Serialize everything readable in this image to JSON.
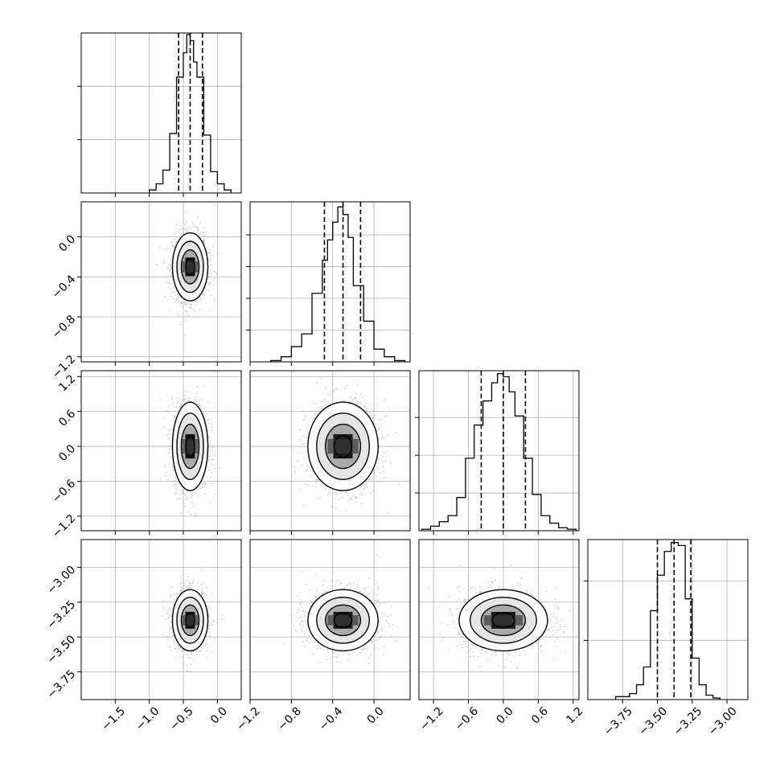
{
  "chart_data": {
    "type": "corner",
    "parameters": [
      {
        "range": [
          -2.0,
          0.35
        ],
        "ticks": [
          -1.5,
          -1.0,
          -0.5,
          0.0
        ],
        "tick_labels": [
          "−1.5",
          "−1.0",
          "−0.5",
          "0.0"
        ],
        "quantiles": [
          -0.57,
          -0.4,
          -0.22
        ],
        "hist_max": 105,
        "hist_ticks": [
          35,
          70
        ],
        "histogram": [
          {
            "x0": -1.0,
            "x1": -0.9,
            "count": 2
          },
          {
            "x0": -0.9,
            "x1": -0.8,
            "count": 6
          },
          {
            "x0": -0.8,
            "x1": -0.7,
            "count": 15
          },
          {
            "x0": -0.7,
            "x1": -0.6,
            "count": 39
          },
          {
            "x0": -0.6,
            "x1": -0.5,
            "count": 76
          },
          {
            "x0": -0.5,
            "x1": -0.45,
            "count": 92
          },
          {
            "x0": -0.45,
            "x1": -0.4,
            "count": 104
          },
          {
            "x0": -0.4,
            "x1": -0.35,
            "count": 100
          },
          {
            "x0": -0.35,
            "x1": -0.3,
            "count": 86
          },
          {
            "x0": -0.3,
            "x1": -0.2,
            "count": 76
          },
          {
            "x0": -0.2,
            "x1": -0.1,
            "count": 38
          },
          {
            "x0": -0.1,
            "x1": 0.0,
            "count": 14
          },
          {
            "x0": 0.0,
            "x1": 0.1,
            "count": 6
          },
          {
            "x0": 0.1,
            "x1": 0.2,
            "count": 2
          }
        ]
      },
      {
        "range": [
          -1.2,
          0.35
        ],
        "ticks": [
          -1.2,
          -0.8,
          -0.4,
          0.0
        ],
        "tick_labels": [
          "−1.2",
          "−0.8",
          "−0.4",
          "0.0"
        ],
        "quantiles": [
          -0.48,
          -0.3,
          -0.13
        ],
        "hist_max": 126,
        "hist_ticks": [
          25,
          50,
          75,
          100
        ],
        "histogram": [
          {
            "x0": -1.0,
            "x1": -0.9,
            "count": 1
          },
          {
            "x0": -0.9,
            "x1": -0.8,
            "count": 4
          },
          {
            "x0": -0.8,
            "x1": -0.7,
            "count": 12
          },
          {
            "x0": -0.7,
            "x1": -0.6,
            "count": 22
          },
          {
            "x0": -0.6,
            "x1": -0.5,
            "count": 54
          },
          {
            "x0": -0.5,
            "x1": -0.45,
            "count": 80
          },
          {
            "x0": -0.45,
            "x1": -0.4,
            "count": 96
          },
          {
            "x0": -0.4,
            "x1": -0.35,
            "count": 110
          },
          {
            "x0": -0.35,
            "x1": -0.3,
            "count": 122
          },
          {
            "x0": -0.3,
            "x1": -0.25,
            "count": 116
          },
          {
            "x0": -0.25,
            "x1": -0.2,
            "count": 98
          },
          {
            "x0": -0.2,
            "x1": -0.1,
            "count": 60
          },
          {
            "x0": -0.1,
            "x1": 0.0,
            "count": 32
          },
          {
            "x0": 0.0,
            "x1": 0.1,
            "count": 10
          },
          {
            "x0": 0.1,
            "x1": 0.2,
            "count": 4
          },
          {
            "x0": 0.2,
            "x1": 0.3,
            "count": 1
          }
        ]
      },
      {
        "range": [
          -1.45,
          1.3
        ],
        "ticks": [
          -1.2,
          -0.6,
          0.0,
          0.6,
          1.2
        ],
        "tick_labels": [
          "−1.2",
          "−0.6",
          "0.0",
          "0.6",
          "1.2"
        ],
        "quantiles": [
          -0.38,
          0.0,
          0.38
        ],
        "hist_max": 106,
        "hist_ticks": [
          25,
          50,
          75
        ],
        "histogram": [
          {
            "x0": -1.4,
            "x1": -1.25,
            "count": 1
          },
          {
            "x0": -1.25,
            "x1": -1.1,
            "count": 3
          },
          {
            "x0": -1.1,
            "x1": -0.95,
            "count": 6
          },
          {
            "x0": -0.95,
            "x1": -0.8,
            "count": 10
          },
          {
            "x0": -0.8,
            "x1": -0.65,
            "count": 22
          },
          {
            "x0": -0.65,
            "x1": -0.5,
            "count": 48
          },
          {
            "x0": -0.5,
            "x1": -0.35,
            "count": 70
          },
          {
            "x0": -0.35,
            "x1": -0.2,
            "count": 86
          },
          {
            "x0": -0.2,
            "x1": -0.1,
            "count": 98
          },
          {
            "x0": -0.1,
            "x1": 0.0,
            "count": 104
          },
          {
            "x0": 0.0,
            "x1": 0.1,
            "count": 102
          },
          {
            "x0": 0.1,
            "x1": 0.2,
            "count": 92
          },
          {
            "x0": 0.2,
            "x1": 0.35,
            "count": 76
          },
          {
            "x0": 0.35,
            "x1": 0.5,
            "count": 48
          },
          {
            "x0": 0.5,
            "x1": 0.65,
            "count": 24
          },
          {
            "x0": 0.65,
            "x1": 0.8,
            "count": 10
          },
          {
            "x0": 0.8,
            "x1": 0.95,
            "count": 5
          },
          {
            "x0": 0.95,
            "x1": 1.1,
            "count": 2
          },
          {
            "x0": 1.1,
            "x1": 1.25,
            "count": 1
          }
        ]
      },
      {
        "range": [
          -4.0,
          -2.85
        ],
        "ticks": [
          -3.75,
          -3.5,
          -3.25,
          -3.0
        ],
        "tick_labels": [
          "−3.75",
          "−3.50",
          "−3.25",
          "−3.00"
        ],
        "quantiles": [
          -3.5,
          -3.38,
          -3.26
        ],
        "hist_max": 108,
        "hist_ticks": [
          40,
          80
        ],
        "histogram": [
          {
            "x0": -3.8,
            "x1": -3.7,
            "count": 2
          },
          {
            "x0": -3.7,
            "x1": -3.65,
            "count": 4
          },
          {
            "x0": -3.65,
            "x1": -3.6,
            "count": 10
          },
          {
            "x0": -3.6,
            "x1": -3.55,
            "count": 22
          },
          {
            "x0": -3.55,
            "x1": -3.5,
            "count": 60
          },
          {
            "x0": -3.5,
            "x1": -3.45,
            "count": 84
          },
          {
            "x0": -3.45,
            "x1": -3.4,
            "count": 100
          },
          {
            "x0": -3.4,
            "x1": -3.35,
            "count": 106
          },
          {
            "x0": -3.35,
            "x1": -3.3,
            "count": 104
          },
          {
            "x0": -3.3,
            "x1": -3.25,
            "count": 68
          },
          {
            "x0": -3.25,
            "x1": -3.2,
            "count": 28
          },
          {
            "x0": -3.2,
            "x1": -3.15,
            "count": 10
          },
          {
            "x0": -3.15,
            "x1": -3.1,
            "count": 3
          },
          {
            "x0": -3.1,
            "x1": -3.05,
            "count": 1
          }
        ]
      }
    ],
    "row_axis": [
      null,
      {
        "range": [
          -1.25,
          0.35
        ],
        "ticks": [
          0.0,
          -0.4,
          -0.8,
          -1.2
        ],
        "tick_labels": [
          "0.0",
          "−0.4",
          "−0.8",
          "−1.2"
        ]
      },
      {
        "range": [
          -1.45,
          1.3
        ],
        "ticks": [
          1.2,
          0.6,
          0.0,
          -0.6,
          -1.2
        ],
        "tick_labels": [
          "1.2",
          "0.6",
          "0.0",
          "−0.6",
          "−1.2"
        ]
      },
      {
        "range": [
          -3.95,
          -2.8
        ],
        "ticks": [
          -3.0,
          -3.25,
          -3.5,
          -3.75
        ],
        "tick_labels": [
          "−3.00",
          "−3.25",
          "−3.50",
          "−3.75"
        ]
      }
    ],
    "pairs": [
      {
        "row": 1,
        "col": 0,
        "mean": [
          -0.4,
          -0.3
        ],
        "sd": [
          0.13,
          0.17
        ]
      },
      {
        "row": 2,
        "col": 0,
        "mean": [
          -0.4,
          0.0
        ],
        "sd": [
          0.13,
          0.38
        ]
      },
      {
        "row": 2,
        "col": 1,
        "mean": [
          -0.3,
          0.0
        ],
        "sd": [
          0.17,
          0.38
        ]
      },
      {
        "row": 3,
        "col": 0,
        "mean": [
          -0.4,
          -3.38
        ],
        "sd": [
          0.13,
          0.11
        ]
      },
      {
        "row": 3,
        "col": 1,
        "mean": [
          -0.3,
          -3.38
        ],
        "sd": [
          0.17,
          0.11
        ]
      },
      {
        "row": 3,
        "col": 2,
        "mean": [
          0.0,
          -3.38
        ],
        "sd": [
          0.38,
          0.11
        ]
      }
    ],
    "contour_levels_sigma": [
      0.5,
      1.0,
      1.5,
      2.0
    ],
    "grid": true,
    "colors": {
      "line": "#000000",
      "grid": "#b0b0b0",
      "points": "#9a9a9a",
      "density_dark": "#000000",
      "density_light": "#ffffff"
    }
  }
}
